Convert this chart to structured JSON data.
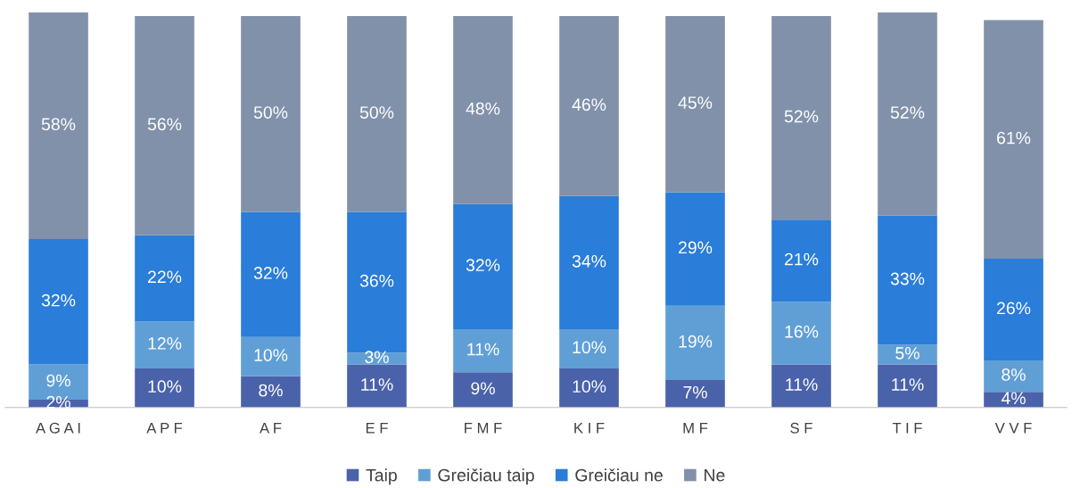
{
  "chart_data": {
    "type": "bar",
    "stacked": true,
    "legend": "bottom",
    "grid": false,
    "tick_labels": "x",
    "categories": [
      "A G A I",
      "A P F",
      "A F",
      "E F",
      "F M F",
      "K I F",
      "M F",
      "S F",
      "T I F",
      "V V F"
    ],
    "series": [
      {
        "name": "Taip",
        "color": "#4a62aa",
        "values": [
          2,
          10,
          8,
          11,
          9,
          10,
          7,
          11,
          11,
          4
        ],
        "value_labels": [
          "2%",
          "10%",
          "8%",
          "11%",
          "9%",
          "10%",
          "7%",
          "11%",
          "11%",
          "4%"
        ]
      },
      {
        "name": "Greičiau taip",
        "color": "#609fd6",
        "values": [
          9,
          12,
          10,
          3,
          11,
          10,
          19,
          16,
          5,
          8
        ],
        "value_labels": [
          "9%",
          "12%",
          "10%",
          "3%",
          "11%",
          "10%",
          "19%",
          "16%",
          "5%",
          "8%"
        ]
      },
      {
        "name": "Greičiau ne",
        "color": "#2a7dd8",
        "values": [
          32,
          22,
          32,
          36,
          32,
          34,
          29,
          21,
          33,
          26
        ],
        "value_labels": [
          "32%",
          "22%",
          "32%",
          "36%",
          "32%",
          "34%",
          "29%",
          "21%",
          "33%",
          "26%"
        ]
      },
      {
        "name": "Ne",
        "color": "#8191aa",
        "values": [
          58,
          56,
          50,
          50,
          48,
          46,
          45,
          52,
          52,
          61
        ],
        "value_labels": [
          "58%",
          "56%",
          "50%",
          "50%",
          "48%",
          "46%",
          "45%",
          "52%",
          "52%",
          "61%"
        ]
      }
    ]
  }
}
